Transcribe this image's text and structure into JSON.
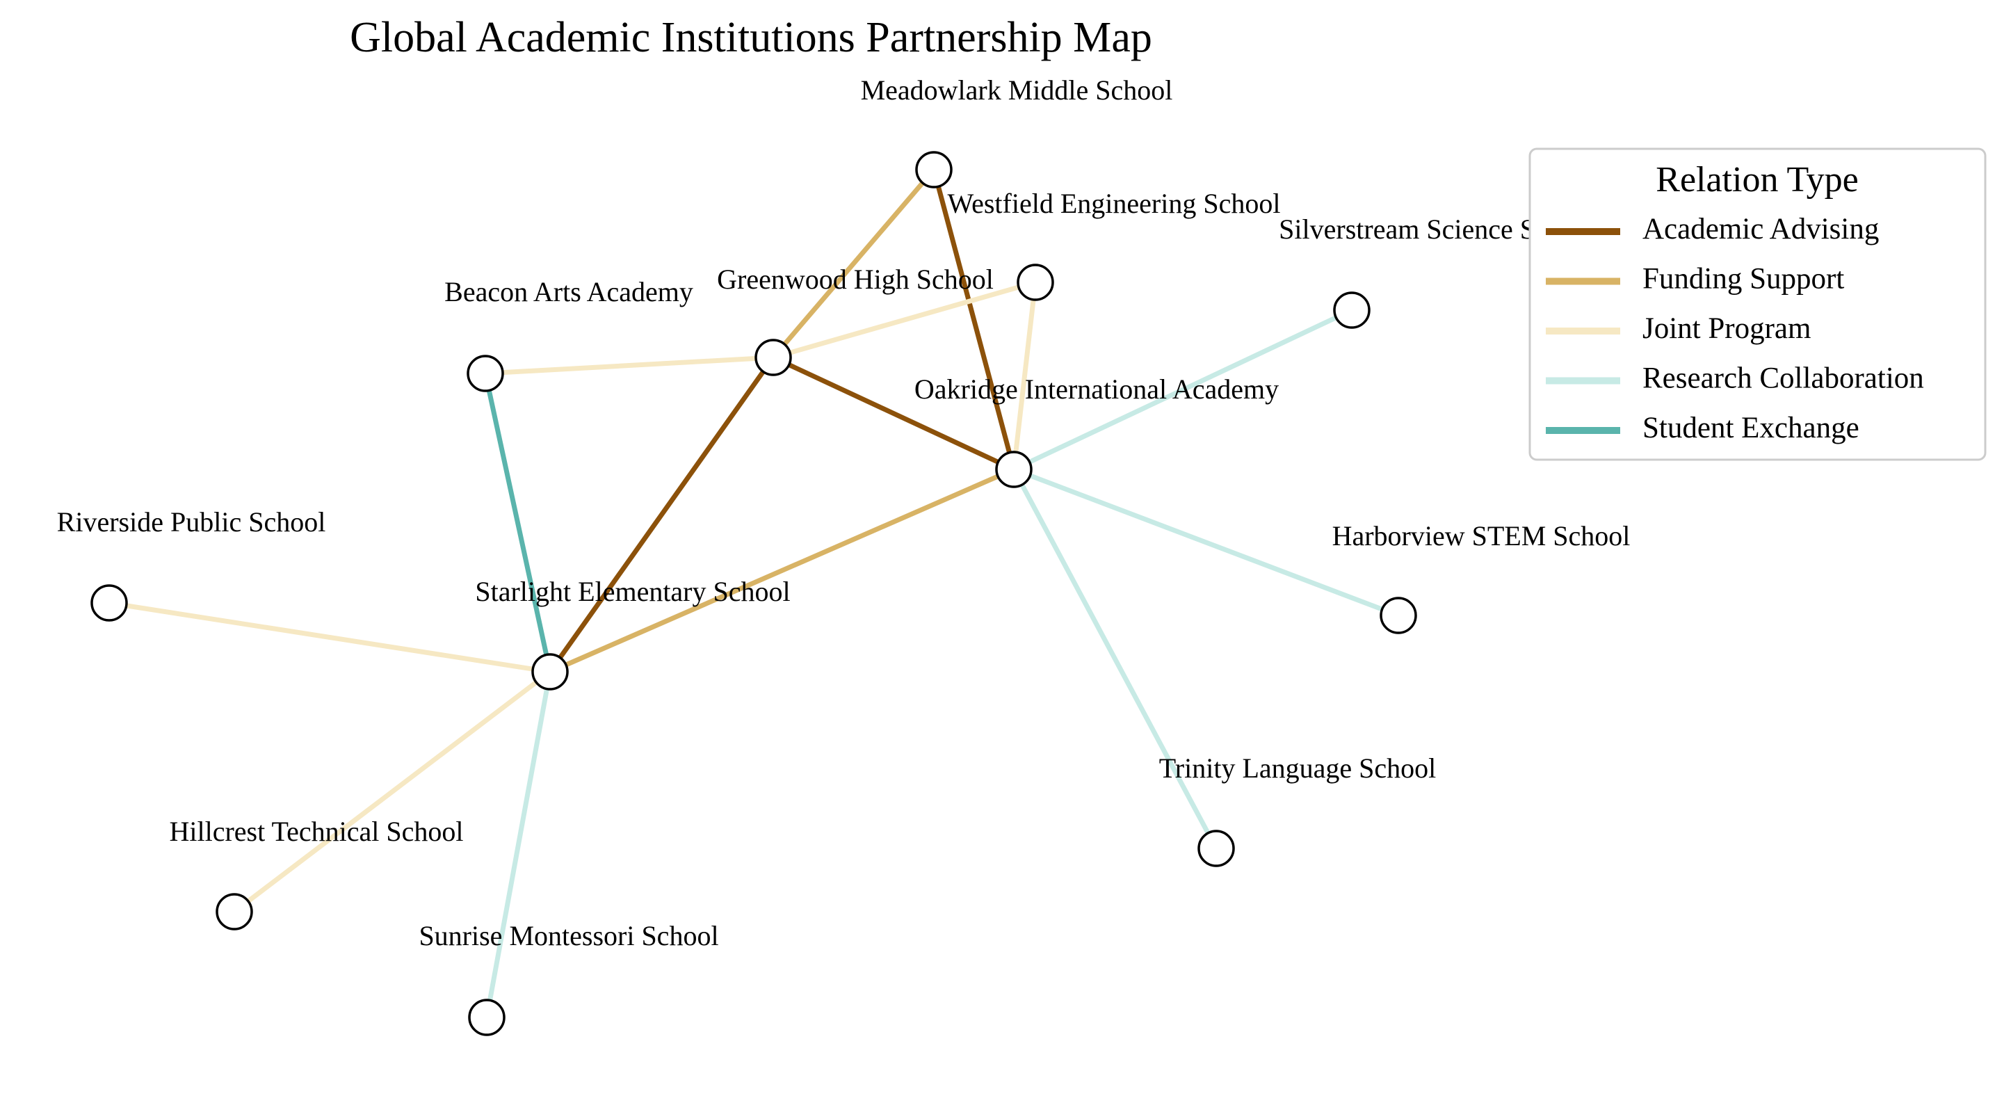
{
  "title": "Global Academic Institutions Partnership Map",
  "legend": {
    "title": "Relation Type",
    "items": [
      {
        "key": "academic_advising",
        "label": "Academic Advising",
        "color": "#8c510a"
      },
      {
        "key": "funding_support",
        "label": "Funding Support",
        "color": "#d8b365"
      },
      {
        "key": "joint_program",
        "label": "Joint Program",
        "color": "#f6e8c3"
      },
      {
        "key": "research_collaboration",
        "label": "Research Collaboration",
        "color": "#c7eae5"
      },
      {
        "key": "student_exchange",
        "label": "Student Exchange",
        "color": "#5ab4ac"
      }
    ]
  },
  "nodes": [
    {
      "id": "meadowlark",
      "label": "Meadowlark Middle School"
    },
    {
      "id": "westfield",
      "label": "Westfield Engineering School"
    },
    {
      "id": "silverstream",
      "label": "Silverstream Science School"
    },
    {
      "id": "greenwood",
      "label": "Greenwood High School"
    },
    {
      "id": "beacon",
      "label": "Beacon Arts Academy"
    },
    {
      "id": "oakridge",
      "label": "Oakridge International Academy"
    },
    {
      "id": "riverside",
      "label": "Riverside Public School"
    },
    {
      "id": "harborview",
      "label": "Harborview STEM School"
    },
    {
      "id": "starlight",
      "label": "Starlight Elementary School"
    },
    {
      "id": "trinity",
      "label": "Trinity Language School"
    },
    {
      "id": "hillcrest",
      "label": "Hillcrest Technical School"
    },
    {
      "id": "sunrise",
      "label": "Sunrise Montessori School"
    }
  ],
  "edges": [
    {
      "source": "greenwood",
      "target": "meadowlark",
      "relation": "funding_support"
    },
    {
      "source": "meadowlark",
      "target": "oakridge",
      "relation": "academic_advising"
    },
    {
      "source": "beacon",
      "target": "greenwood",
      "relation": "joint_program"
    },
    {
      "source": "greenwood",
      "target": "westfield",
      "relation": "joint_program"
    },
    {
      "source": "westfield",
      "target": "oakridge",
      "relation": "joint_program"
    },
    {
      "source": "greenwood",
      "target": "oakridge",
      "relation": "academic_advising"
    },
    {
      "source": "greenwood",
      "target": "starlight",
      "relation": "academic_advising"
    },
    {
      "source": "oakridge",
      "target": "silverstream",
      "relation": "research_collaboration"
    },
    {
      "source": "oakridge",
      "target": "harborview",
      "relation": "research_collaboration"
    },
    {
      "source": "oakridge",
      "target": "trinity",
      "relation": "research_collaboration"
    },
    {
      "source": "oakridge",
      "target": "starlight",
      "relation": "funding_support"
    },
    {
      "source": "beacon",
      "target": "starlight",
      "relation": "student_exchange"
    },
    {
      "source": "riverside",
      "target": "starlight",
      "relation": "joint_program"
    },
    {
      "source": "starlight",
      "target": "hillcrest",
      "relation": "joint_program"
    },
    {
      "source": "starlight",
      "target": "sunrise",
      "relation": "research_collaboration"
    }
  ]
}
